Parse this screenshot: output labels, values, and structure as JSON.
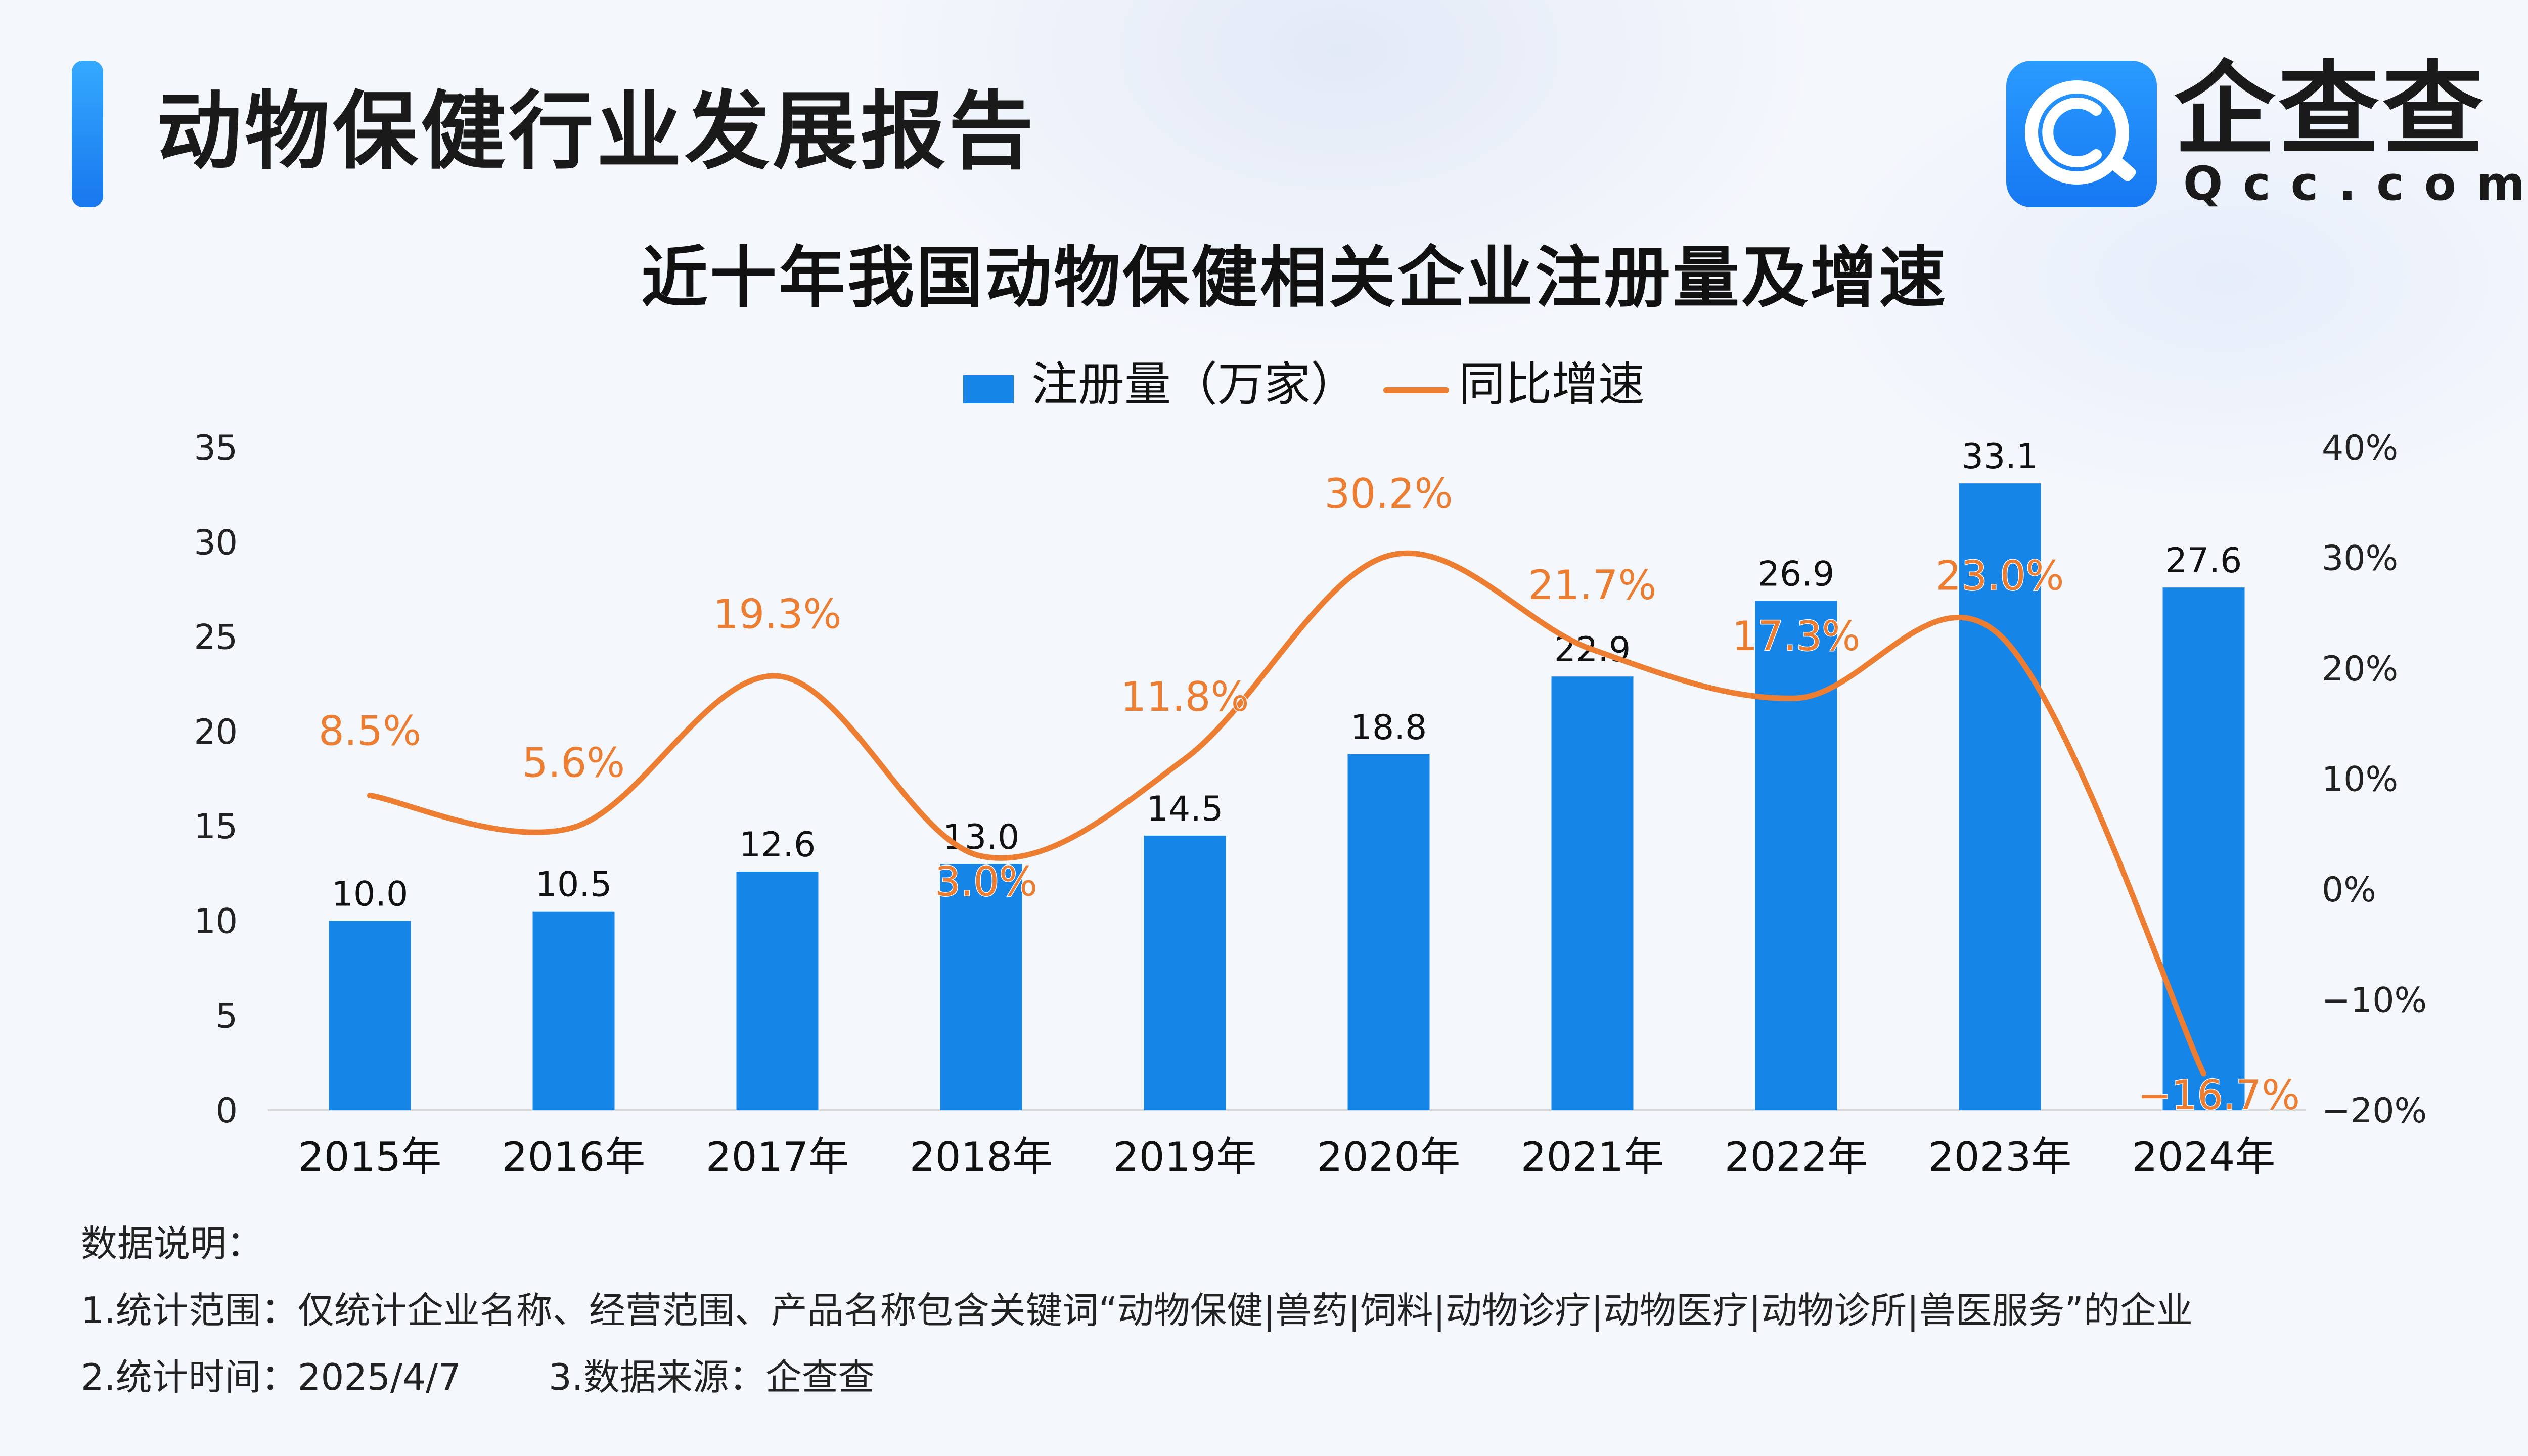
{
  "header": {
    "title": "动物保健行业发展报告",
    "logo_cn": "企查查",
    "logo_en": "Qcc.com"
  },
  "notes": {
    "heading": "数据说明：",
    "line1": "1.统计范围：仅统计企业名称、经营范围、产品名称包含关键词“动物保健|兽药|饲料|动物诊疗|动物医疗|动物诊所|兽医服务”的企业",
    "line2_time": "2.统计时间：2025/4/7",
    "line2_source": "3.数据来源：企查查"
  },
  "colors": {
    "bar": "#1685e8",
    "line": "#ec7d31",
    "brand": "#1a7ff0"
  },
  "chart_data": {
    "type": "bar",
    "title": "近十年我国动物保健相关企业注册量及增速",
    "categories": [
      "2015年",
      "2016年",
      "2017年",
      "2018年",
      "2019年",
      "2020年",
      "2021年",
      "2022年",
      "2023年",
      "2024年"
    ],
    "series": [
      {
        "name": "注册量（万家）",
        "type": "bar",
        "axis": "left",
        "values": [
          10.0,
          10.5,
          12.6,
          13.0,
          14.5,
          18.8,
          22.9,
          26.9,
          33.1,
          27.6
        ],
        "labels": [
          "10.0",
          "10.5",
          "12.6",
          "13.0",
          "14.5",
          "18.8",
          "22.9",
          "26.9",
          "33.1",
          "27.6"
        ]
      },
      {
        "name": "同比增速",
        "type": "line",
        "axis": "right",
        "values": [
          8.5,
          5.6,
          19.3,
          3.0,
          11.8,
          30.2,
          21.7,
          17.3,
          23.0,
          -16.7
        ],
        "labels": [
          "8.5%",
          "5.6%",
          "19.3%",
          "3.0%",
          "11.8%",
          "30.2%",
          "21.7%",
          "17.3%",
          "23.0%",
          "-16.7%"
        ]
      }
    ],
    "y_left": {
      "min": 0,
      "max": 35,
      "ticks": [
        "0",
        "5",
        "10",
        "15",
        "20",
        "25",
        "30",
        "35"
      ]
    },
    "y_right": {
      "min": -20,
      "max": 40,
      "ticks": [
        "-20%",
        "-10%",
        "0%",
        "10%",
        "20%",
        "30%",
        "40%"
      ]
    },
    "legend": "top-center",
    "grid": false
  }
}
